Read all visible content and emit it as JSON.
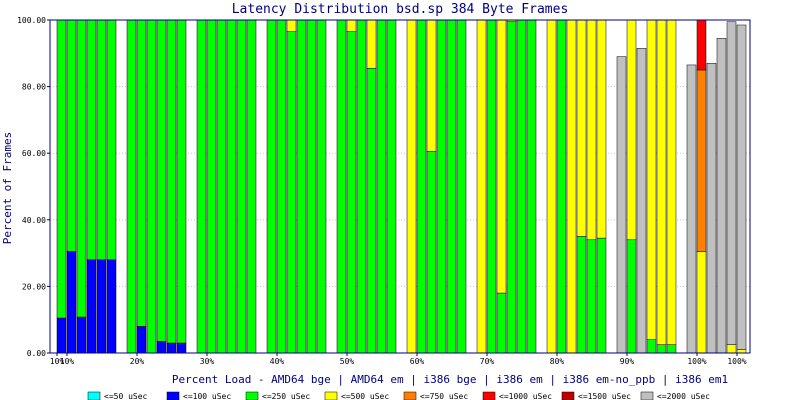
{
  "chart_data": {
    "type": "bar",
    "stacked": true,
    "title": "Latency Distribution bsd.sp 384 Byte Frames",
    "xlabel": "Percent Load - AMD64 bge | AMD64 em | i386 bge | i386 em | i386 em-no_ppb | i386 em1",
    "ylabel": "Percent of Frames",
    "ylim": [
      0,
      100
    ],
    "yticks": [
      "0.00",
      "20.00",
      "40.00",
      "60.00",
      "80.00",
      "100.00"
    ],
    "grid": true,
    "legend_position": "bottom",
    "categories": [
      "10%",
      "20%",
      "30%",
      "40%",
      "50%",
      "60%",
      "70%",
      "80%",
      "90%",
      "100%"
    ],
    "x_tick_labels": [
      {
        "label": "10%",
        "group": 0,
        "offset": 0
      },
      {
        "label": "10%",
        "group": 0,
        "offset": 1
      },
      {
        "label": "20%",
        "group": 1,
        "offset": 1
      },
      {
        "label": "30%",
        "group": 2,
        "offset": 1
      },
      {
        "label": "40%",
        "group": 3,
        "offset": 1
      },
      {
        "label": "50%",
        "group": 4,
        "offset": 1
      },
      {
        "label": "60%",
        "group": 5,
        "offset": 1
      },
      {
        "label": "70%",
        "group": 6,
        "offset": 1
      },
      {
        "label": "80%",
        "group": 7,
        "offset": 1
      },
      {
        "label": "90%",
        "group": 8,
        "offset": 1
      },
      {
        "label": "100%",
        "group": 9,
        "offset": 1
      },
      {
        "label": "100%",
        "group": 9,
        "offset": 5
      }
    ],
    "legend": [
      {
        "label": "<=50 uSec",
        "color": "#00ffff"
      },
      {
        "label": "<=100 uSec",
        "color": "#0000ff"
      },
      {
        "label": "<=250 uSec",
        "color": "#00ff00"
      },
      {
        "label": "<=500 uSec",
        "color": "#ffff00"
      },
      {
        "label": "<=750 uSec",
        "color": "#ff8000"
      },
      {
        "label": "<=1000 uSec",
        "color": "#ff0000"
      },
      {
        "label": "<=1500 uSec",
        "color": "#c00000"
      },
      {
        "label": "<=2000 uSec",
        "color": "#c0c0c0"
      }
    ],
    "bars": [
      {
        "group": 0,
        "slot": 0,
        "segments": [
          0,
          10.5,
          89.5,
          0,
          0,
          0,
          0,
          0
        ]
      },
      {
        "group": 0,
        "slot": 1,
        "segments": [
          0,
          30.5,
          69.5,
          0,
          0,
          0,
          0,
          0
        ]
      },
      {
        "group": 0,
        "slot": 2,
        "segments": [
          0,
          10.8,
          89.2,
          0,
          0,
          0,
          0,
          0
        ]
      },
      {
        "group": 0,
        "slot": 3,
        "segments": [
          0,
          28,
          72,
          0,
          0,
          0,
          0,
          0
        ]
      },
      {
        "group": 0,
        "slot": 4,
        "segments": [
          0,
          28,
          72,
          0,
          0,
          0,
          0,
          0
        ]
      },
      {
        "group": 0,
        "slot": 5,
        "segments": [
          0,
          28,
          72,
          0,
          0,
          0,
          0,
          0
        ]
      },
      {
        "group": 1,
        "slot": 0,
        "segments": [
          0,
          0,
          100,
          0,
          0,
          0,
          0,
          0
        ]
      },
      {
        "group": 1,
        "slot": 1,
        "segments": [
          0,
          8,
          92,
          0,
          0,
          0,
          0,
          0
        ]
      },
      {
        "group": 1,
        "slot": 2,
        "segments": [
          0,
          0,
          100,
          0,
          0,
          0,
          0,
          0
        ]
      },
      {
        "group": 1,
        "slot": 3,
        "segments": [
          0,
          3.5,
          96.5,
          0,
          0,
          0,
          0,
          0
        ]
      },
      {
        "group": 1,
        "slot": 4,
        "segments": [
          0,
          3,
          97,
          0,
          0,
          0,
          0,
          0
        ]
      },
      {
        "group": 1,
        "slot": 5,
        "segments": [
          0,
          3,
          97,
          0,
          0,
          0,
          0,
          0
        ]
      },
      {
        "group": 2,
        "slot": 0,
        "segments": [
          0,
          0,
          100,
          0,
          0,
          0,
          0,
          0
        ]
      },
      {
        "group": 2,
        "slot": 1,
        "segments": [
          0,
          0,
          100,
          0,
          0,
          0,
          0,
          0
        ]
      },
      {
        "group": 2,
        "slot": 2,
        "segments": [
          0,
          0,
          100,
          0,
          0,
          0,
          0,
          0
        ]
      },
      {
        "group": 2,
        "slot": 3,
        "segments": [
          0,
          0,
          100,
          0,
          0,
          0,
          0,
          0
        ]
      },
      {
        "group": 2,
        "slot": 4,
        "segments": [
          0,
          0,
          100,
          0,
          0,
          0,
          0,
          0
        ]
      },
      {
        "group": 2,
        "slot": 5,
        "segments": [
          0,
          0,
          100,
          0,
          0,
          0,
          0,
          0
        ]
      },
      {
        "group": 3,
        "slot": 0,
        "segments": [
          0,
          0,
          100,
          0,
          0,
          0,
          0,
          0
        ]
      },
      {
        "group": 3,
        "slot": 1,
        "segments": [
          0,
          0,
          100,
          0,
          0,
          0,
          0,
          0
        ]
      },
      {
        "group": 3,
        "slot": 2,
        "segments": [
          0,
          0,
          96.5,
          3.5,
          0,
          0,
          0,
          0
        ]
      },
      {
        "group": 3,
        "slot": 3,
        "segments": [
          0,
          0,
          100,
          0,
          0,
          0,
          0,
          0
        ]
      },
      {
        "group": 3,
        "slot": 4,
        "segments": [
          0,
          0,
          100,
          0,
          0,
          0,
          0,
          0
        ]
      },
      {
        "group": 3,
        "slot": 5,
        "segments": [
          0,
          0,
          100,
          0,
          0,
          0,
          0,
          0
        ]
      },
      {
        "group": 4,
        "slot": 0,
        "segments": [
          0,
          0,
          100,
          0,
          0,
          0,
          0,
          0
        ]
      },
      {
        "group": 4,
        "slot": 1,
        "segments": [
          0,
          0,
          96.5,
          3.5,
          0,
          0,
          0,
          0
        ]
      },
      {
        "group": 4,
        "slot": 2,
        "segments": [
          0,
          0,
          100,
          0,
          0,
          0,
          0,
          0
        ]
      },
      {
        "group": 4,
        "slot": 3,
        "segments": [
          0,
          0,
          85.5,
          14.5,
          0,
          0,
          0,
          0
        ]
      },
      {
        "group": 4,
        "slot": 4,
        "segments": [
          0,
          0,
          100,
          0,
          0,
          0,
          0,
          0
        ]
      },
      {
        "group": 4,
        "slot": 5,
        "segments": [
          0,
          0,
          100,
          0,
          0,
          0,
          0,
          0
        ]
      },
      {
        "group": 5,
        "slot": 0,
        "segments": [
          0,
          0,
          0,
          100,
          0,
          0,
          0,
          0
        ]
      },
      {
        "group": 5,
        "slot": 1,
        "segments": [
          0,
          0,
          100,
          0,
          0,
          0,
          0,
          0
        ]
      },
      {
        "group": 5,
        "slot": 2,
        "segments": [
          0,
          0,
          60.5,
          39.5,
          0,
          0,
          0,
          0
        ]
      },
      {
        "group": 5,
        "slot": 3,
        "segments": [
          0,
          0,
          100,
          0,
          0,
          0,
          0,
          0
        ]
      },
      {
        "group": 5,
        "slot": 4,
        "segments": [
          0,
          0,
          100,
          0,
          0,
          0,
          0,
          0
        ]
      },
      {
        "group": 5,
        "slot": 5,
        "segments": [
          0,
          0,
          100,
          0,
          0,
          0,
          0,
          0
        ]
      },
      {
        "group": 6,
        "slot": 0,
        "segments": [
          0,
          0,
          0,
          100,
          0,
          0,
          0,
          0
        ]
      },
      {
        "group": 6,
        "slot": 1,
        "segments": [
          0,
          0,
          100,
          0,
          0,
          0,
          0,
          0
        ]
      },
      {
        "group": 6,
        "slot": 2,
        "segments": [
          0,
          0,
          18,
          82,
          0,
          0,
          0,
          0
        ]
      },
      {
        "group": 6,
        "slot": 3,
        "segments": [
          0,
          0,
          99.5,
          0.5,
          0,
          0,
          0,
          0
        ]
      },
      {
        "group": 6,
        "slot": 4,
        "segments": [
          0,
          0,
          100,
          0,
          0,
          0,
          0,
          0
        ]
      },
      {
        "group": 6,
        "slot": 5,
        "segments": [
          0,
          0,
          100,
          0,
          0,
          0,
          0,
          0
        ]
      },
      {
        "group": 7,
        "slot": 0,
        "segments": [
          0,
          0,
          0,
          100,
          0,
          0,
          0,
          0
        ]
      },
      {
        "group": 7,
        "slot": 1,
        "segments": [
          0,
          0,
          100,
          0,
          0,
          0,
          0,
          0
        ]
      },
      {
        "group": 7,
        "slot": 2,
        "segments": [
          0,
          0,
          0,
          100,
          0,
          0,
          0,
          0
        ]
      },
      {
        "group": 7,
        "slot": 3,
        "segments": [
          0,
          0,
          35,
          65,
          0,
          0,
          0,
          0
        ]
      },
      {
        "group": 7,
        "slot": 4,
        "segments": [
          0,
          0,
          34,
          66,
          0,
          0,
          0,
          0
        ]
      },
      {
        "group": 7,
        "slot": 5,
        "segments": [
          0,
          0,
          34.5,
          65.5,
          0,
          0,
          0,
          0
        ]
      },
      {
        "group": 8,
        "slot": 0,
        "segments": [
          0,
          0,
          0,
          0,
          0,
          0,
          0,
          89
        ]
      },
      {
        "group": 8,
        "slot": 1,
        "segments": [
          0,
          0,
          34,
          66,
          0,
          0,
          0,
          0
        ]
      },
      {
        "group": 8,
        "slot": 2,
        "segments": [
          0,
          0,
          0,
          0,
          0,
          0,
          0,
          91.5
        ]
      },
      {
        "group": 8,
        "slot": 3,
        "segments": [
          0,
          0,
          4,
          96,
          0,
          0,
          0,
          0
        ]
      },
      {
        "group": 8,
        "slot": 4,
        "segments": [
          0,
          0,
          2.5,
          97.5,
          0,
          0,
          0,
          0
        ]
      },
      {
        "group": 8,
        "slot": 5,
        "segments": [
          0,
          0,
          2.5,
          97.5,
          0,
          0,
          0,
          0
        ]
      },
      {
        "group": 9,
        "slot": 0,
        "segments": [
          0,
          0,
          0,
          0,
          0,
          0,
          0,
          86.5
        ]
      },
      {
        "group": 9,
        "slot": 1,
        "segments": [
          0,
          0,
          0,
          30.5,
          54.5,
          15,
          0,
          0
        ]
      },
      {
        "group": 9,
        "slot": 2,
        "segments": [
          0,
          0,
          0,
          0,
          0,
          0,
          0,
          87
        ]
      },
      {
        "group": 9,
        "slot": 3,
        "segments": [
          0,
          0,
          0,
          0,
          0,
          0,
          0,
          94.5
        ]
      },
      {
        "group": 9,
        "slot": 4,
        "segments": [
          0,
          0,
          0,
          2.5,
          0,
          0,
          0,
          97
        ]
      },
      {
        "group": 9,
        "slot": 5,
        "segments": [
          0,
          0,
          0,
          1,
          0,
          0,
          0,
          97.5
        ]
      }
    ]
  }
}
